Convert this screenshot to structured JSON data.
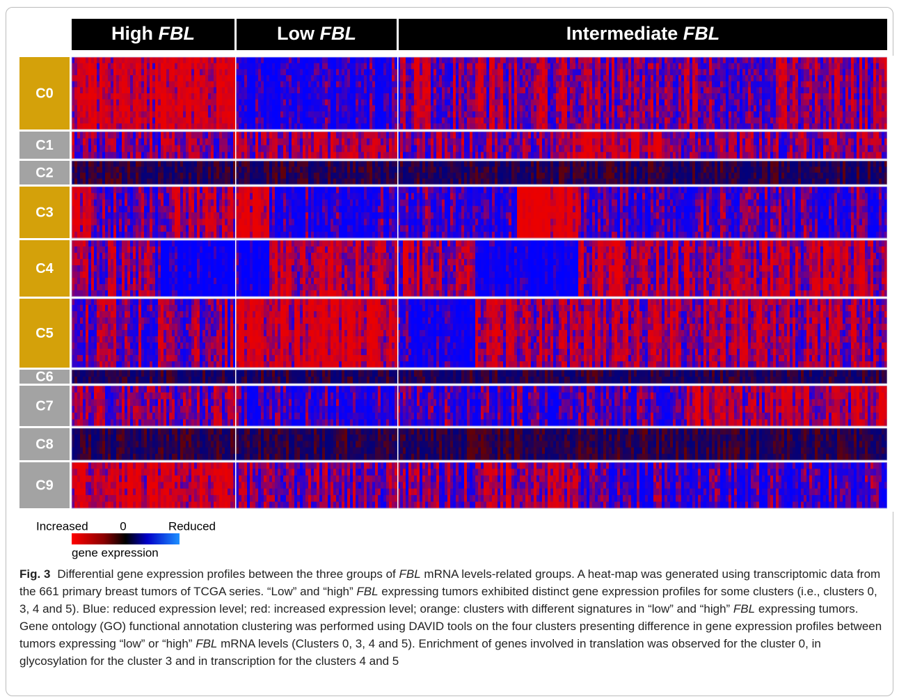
{
  "figure": {
    "groups": [
      {
        "name": "High",
        "gene": "FBL"
      },
      {
        "name": "Low",
        "gene": "FBL"
      },
      {
        "name": "Intermediate",
        "gene": "FBL"
      }
    ],
    "clusters": [
      "C0",
      "C1",
      "C2",
      "C3",
      "C4",
      "C5",
      "C6",
      "C7",
      "C8",
      "C9"
    ],
    "legend": {
      "left": "Increased",
      "middle": "0",
      "right": "Reduced",
      "caption": "gene expression"
    },
    "caption": {
      "label": "Fig. 3",
      "parts": [
        "Differential gene expression profiles between the three groups of ",
        "FBL",
        " mRNA levels-related groups. A heat-map was generated using transcriptomic data from the 661 primary breast tumors of TCGA series. “Low” and “high” ",
        "FBL",
        " expressing tumors exhibited distinct gene expression profiles for some clusters (i.e., clusters 0, 3, 4 and 5). Blue: reduced expression level; red: increased expression level; orange: clusters with different signatures in “low” and “high” ",
        "FBL",
        " expressing tumors. Gene ontology (GO) functional annotation clustering was performed using DAVID tools on the four clusters presenting difference in gene expression profiles between tumors expressing “low” or “high” ",
        "FBL",
        " mRNA levels (Clusters 0, 3, 4 and 5). Enrichment of genes involved in translation was observed for the cluster 0, in glycosylation for the cluster 3 and in transcription for the clusters 4 and 5"
      ]
    }
  }
}
